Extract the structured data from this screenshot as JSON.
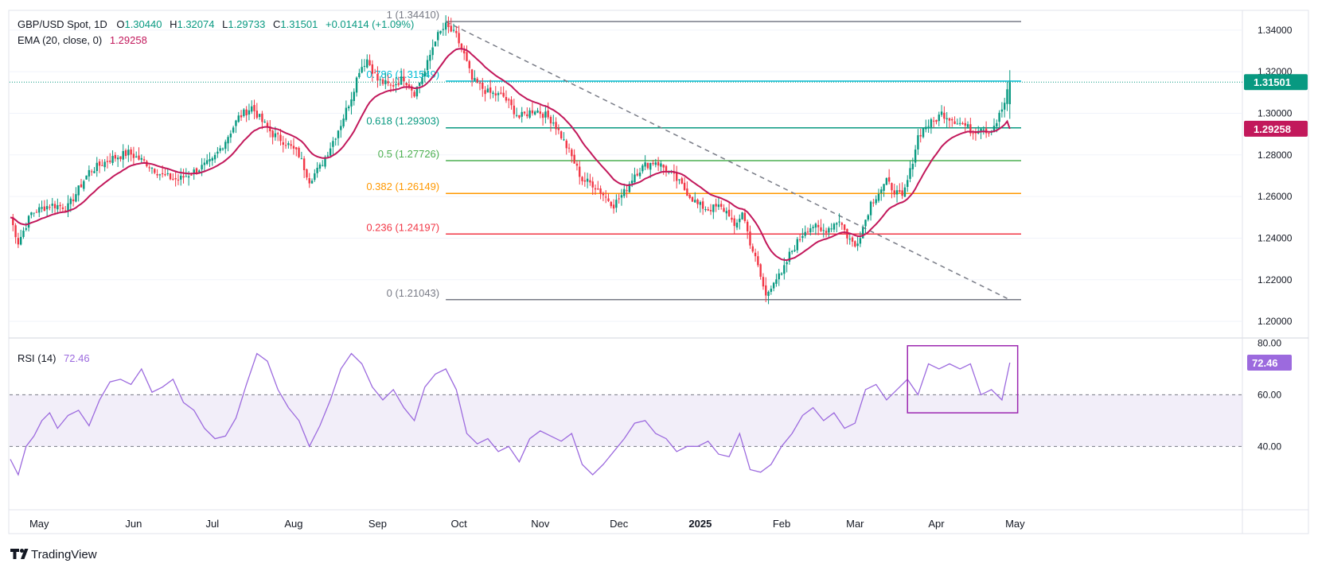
{
  "header": {
    "symbol": "GBP/USD Spot, 1D",
    "open_label": "O",
    "open": "1.30440",
    "high_label": "H",
    "high": "1.32074",
    "low_label": "L",
    "low": "1.29733",
    "close_label": "C",
    "close": "1.31501",
    "change": "+0.01414 (+1.09%)",
    "ema_label": "EMA (20, close, 0)",
    "ema_value": "1.29258"
  },
  "rsi_header": {
    "label": "RSI (14)",
    "value": "72.46"
  },
  "footer": {
    "brand": "TradingView"
  },
  "colors": {
    "up": "#089981",
    "down": "#f23645",
    "ema": "#c2185b",
    "rsi": "#9c6ade",
    "fib_top": "#787b86",
    "fib_786": "#00bcd4",
    "fib_618": "#089981",
    "fib_5": "#4caf50",
    "fib_382": "#ff9800",
    "fib_236": "#f23645",
    "box": "#9c27b0"
  },
  "chart_data": [
    {
      "type": "candlestick",
      "title": "GBP/USD Spot, 1D",
      "x_ticks": [
        "May",
        "Jun",
        "Jul",
        "Aug",
        "Sep",
        "Oct",
        "Nov",
        "Dec",
        "2025",
        "Feb",
        "Mar",
        "Apr",
        "May"
      ],
      "y_ticks": [
        "1.34000",
        "1.32000",
        "1.30000",
        "1.28000",
        "1.26000",
        "1.24000",
        "1.22000",
        "1.20000"
      ],
      "ylim": [
        1.1985,
        1.3495
      ],
      "price_label": "1.31501",
      "ema_label": "1.29258",
      "close_path": [
        [
          0,
          1.25
        ],
        [
          3,
          1.238
        ],
        [
          8,
          1.252
        ],
        [
          15,
          1.256
        ],
        [
          22,
          1.255
        ],
        [
          30,
          1.272
        ],
        [
          38,
          1.278
        ],
        [
          45,
          1.281
        ],
        [
          52,
          1.276
        ],
        [
          58,
          1.27
        ],
        [
          64,
          1.268
        ],
        [
          70,
          1.272
        ],
        [
          77,
          1.277
        ],
        [
          82,
          1.287
        ],
        [
          87,
          1.298
        ],
        [
          92,
          1.303
        ],
        [
          96,
          1.296
        ],
        [
          100,
          1.29
        ],
        [
          105,
          1.286
        ],
        [
          110,
          1.28
        ],
        [
          114,
          1.268
        ],
        [
          118,
          1.274
        ],
        [
          122,
          1.284
        ],
        [
          126,
          1.295
        ],
        [
          130,
          1.308
        ],
        [
          133,
          1.321
        ],
        [
          136,
          1.326
        ],
        [
          140,
          1.316
        ],
        [
          145,
          1.313
        ],
        [
          150,
          1.317
        ],
        [
          154,
          1.31
        ],
        [
          158,
          1.32
        ],
        [
          162,
          1.336
        ],
        [
          166,
          1.342
        ],
        [
          170,
          1.337
        ],
        [
          173,
          1.328
        ],
        [
          176,
          1.316
        ],
        [
          182,
          1.31
        ],
        [
          188,
          1.308
        ],
        [
          194,
          1.298
        ],
        [
          200,
          1.302
        ],
        [
          204,
          1.299
        ],
        [
          207,
          1.296
        ],
        [
          210,
          1.289
        ],
        [
          214,
          1.279
        ],
        [
          218,
          1.268
        ],
        [
          222,
          1.266
        ],
        [
          226,
          1.261
        ],
        [
          230,
          1.256
        ],
        [
          234,
          1.262
        ],
        [
          238,
          1.271
        ],
        [
          242,
          1.275
        ],
        [
          246,
          1.277
        ],
        [
          250,
          1.273
        ],
        [
          254,
          1.268
        ],
        [
          258,
          1.262
        ],
        [
          262,
          1.256
        ],
        [
          266,
          1.254
        ],
        [
          270,
          1.255
        ],
        [
          274,
          1.252
        ],
        [
          276,
          1.244
        ],
        [
          279,
          1.253
        ],
        [
          282,
          1.238
        ],
        [
          285,
          1.226
        ],
        [
          288,
          1.212
        ],
        [
          291,
          1.22
        ],
        [
          294,
          1.222
        ],
        [
          297,
          1.232
        ],
        [
          300,
          1.238
        ],
        [
          303,
          1.244
        ],
        [
          306,
          1.246
        ],
        [
          309,
          1.243
        ],
        [
          312,
          1.245
        ],
        [
          316,
          1.249
        ],
        [
          319,
          1.241
        ],
        [
          322,
          1.236
        ],
        [
          325,
          1.245
        ],
        [
          328,
          1.257
        ],
        [
          331,
          1.262
        ],
        [
          334,
          1.267
        ],
        [
          337,
          1.263
        ],
        [
          340,
          1.259
        ],
        [
          343,
          1.272
        ],
        [
          346,
          1.289
        ],
        [
          349,
          1.294
        ],
        [
          352,
          1.296
        ],
        [
          355,
          1.3
        ],
        [
          358,
          1.298
        ],
        [
          361,
          1.296
        ],
        [
          364,
          1.294
        ],
        [
          367,
          1.291
        ],
        [
          370,
          1.294
        ],
        [
          373,
          1.291
        ],
        [
          376,
          1.296
        ],
        [
          379,
          1.305
        ],
        [
          381,
          1.315
        ]
      ],
      "fib_levels": [
        {
          "ratio": "1",
          "value": 1.3441,
          "label": "1 (1.34410)"
        },
        {
          "ratio": "0.786",
          "value": 1.31549,
          "label": "0.786 (1.31549)"
        },
        {
          "ratio": "0.618",
          "value": 1.29303,
          "label": "0.618 (1.29303)"
        },
        {
          "ratio": "0.5",
          "value": 1.27726,
          "label": "0.5 (1.27726)"
        },
        {
          "ratio": "0.382",
          "value": 1.26149,
          "label": "0.382 (1.26149)"
        },
        {
          "ratio": "0.236",
          "value": 1.24197,
          "label": "0.236 (1.24197)"
        },
        {
          "ratio": "0",
          "value": 1.21043,
          "label": "0 (1.21043)"
        }
      ],
      "trendline": [
        [
          166,
          1.3441
        ],
        [
          380,
          1.211
        ]
      ]
    },
    {
      "type": "line",
      "title": "RSI (14)",
      "y_ticks": [
        "80.00",
        "60.00",
        "40.00"
      ],
      "ylim": [
        25,
        82
      ],
      "band": [
        40,
        60
      ],
      "value_label": "72.46",
      "path": [
        [
          0,
          35
        ],
        [
          3,
          29
        ],
        [
          6,
          40
        ],
        [
          9,
          44
        ],
        [
          12,
          50
        ],
        [
          15,
          53
        ],
        [
          18,
          47
        ],
        [
          22,
          52
        ],
        [
          26,
          54
        ],
        [
          30,
          48
        ],
        [
          34,
          58
        ],
        [
          38,
          65
        ],
        [
          42,
          66
        ],
        [
          46,
          64
        ],
        [
          50,
          70
        ],
        [
          54,
          61
        ],
        [
          58,
          63
        ],
        [
          62,
          66
        ],
        [
          66,
          57
        ],
        [
          70,
          54
        ],
        [
          74,
          47
        ],
        [
          78,
          43
        ],
        [
          82,
          44
        ],
        [
          86,
          51
        ],
        [
          90,
          64
        ],
        [
          94,
          76
        ],
        [
          98,
          73
        ],
        [
          102,
          62
        ],
        [
          106,
          55
        ],
        [
          110,
          50
        ],
        [
          114,
          40
        ],
        [
          118,
          48
        ],
        [
          122,
          58
        ],
        [
          126,
          70
        ],
        [
          130,
          76
        ],
        [
          134,
          72
        ],
        [
          138,
          63
        ],
        [
          142,
          58
        ],
        [
          146,
          62
        ],
        [
          150,
          55
        ],
        [
          154,
          50
        ],
        [
          158,
          63
        ],
        [
          162,
          68
        ],
        [
          166,
          70
        ],
        [
          170,
          62
        ],
        [
          174,
          45
        ],
        [
          178,
          41
        ],
        [
          182,
          43
        ],
        [
          186,
          38
        ],
        [
          190,
          40
        ],
        [
          194,
          34
        ],
        [
          198,
          43
        ],
        [
          202,
          46
        ],
        [
          206,
          44
        ],
        [
          210,
          42
        ],
        [
          214,
          45
        ],
        [
          218,
          33
        ],
        [
          222,
          29
        ],
        [
          226,
          33
        ],
        [
          230,
          38
        ],
        [
          234,
          43
        ],
        [
          238,
          49
        ],
        [
          242,
          50
        ],
        [
          246,
          45
        ],
        [
          250,
          43
        ],
        [
          254,
          38
        ],
        [
          258,
          40
        ],
        [
          262,
          40
        ],
        [
          266,
          42
        ],
        [
          270,
          37
        ],
        [
          274,
          36
        ],
        [
          278,
          45
        ],
        [
          282,
          31
        ],
        [
          286,
          30
        ],
        [
          290,
          33
        ],
        [
          294,
          40
        ],
        [
          298,
          45
        ],
        [
          302,
          52
        ],
        [
          306,
          55
        ],
        [
          310,
          50
        ],
        [
          314,
          53
        ],
        [
          318,
          47
        ],
        [
          322,
          49
        ],
        [
          326,
          62
        ],
        [
          330,
          64
        ],
        [
          334,
          58
        ],
        [
          338,
          62
        ],
        [
          342,
          66
        ],
        [
          346,
          60
        ],
        [
          350,
          72
        ],
        [
          354,
          70
        ],
        [
          358,
          72
        ],
        [
          362,
          70
        ],
        [
          366,
          72
        ],
        [
          370,
          60
        ],
        [
          374,
          62
        ],
        [
          378,
          58
        ],
        [
          381,
          72.46
        ]
      ]
    }
  ]
}
